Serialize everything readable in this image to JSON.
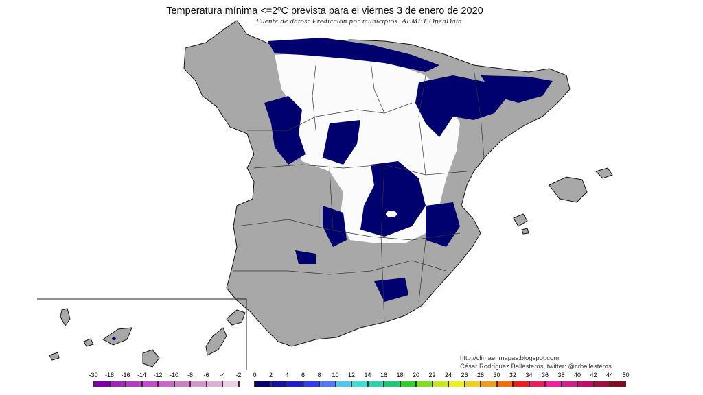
{
  "title": "Temperatura mínima <=2ºC prevista para el viernes 3 de enero de 2020",
  "subtitle": "Fuente de datos: Predicción por municipios. AEMET OpenData",
  "credits": {
    "line1": "http://climaenmapas.blogspot.com",
    "line2": "César Rodríguez Ballesteros, twitter: @crballesteros"
  },
  "legend": {
    "labels": [
      "-30",
      "-18",
      "-16",
      "-14",
      "-12",
      "-10",
      "-8",
      "-6",
      "-4",
      "-2",
      "0",
      "2",
      "4",
      "6",
      "8",
      "10",
      "12",
      "14",
      "16",
      "18",
      "20",
      "22",
      "24",
      "26",
      "28",
      "30",
      "32",
      "34",
      "36",
      "38",
      "40",
      "42",
      "44",
      "50"
    ],
    "colors": [
      "#7a00a8",
      "#9b2bb8",
      "#b040c0",
      "#c050c8",
      "#c868c8",
      "#d080c8",
      "#d898cc",
      "#e0b0d4",
      "#ecd0e4",
      "#ffffff",
      "#00006e",
      "#1414a0",
      "#2020d0",
      "#3040f0",
      "#5078f8",
      "#50c8f0",
      "#40e0d8",
      "#30d0b0",
      "#20c870",
      "#30d030",
      "#80e020",
      "#c8e820",
      "#f0f020",
      "#f0d020",
      "#f0a020",
      "#f07010",
      "#f02020",
      "#e82060",
      "#f020a0",
      "#d0208c",
      "#c01070",
      "#a01040",
      "#801020"
    ]
  },
  "map_colors": {
    "land": "#aaaaaa",
    "cold_zero_to_two": "#00006e",
    "near_zero": "#ffffff",
    "coast": "#111111"
  }
}
